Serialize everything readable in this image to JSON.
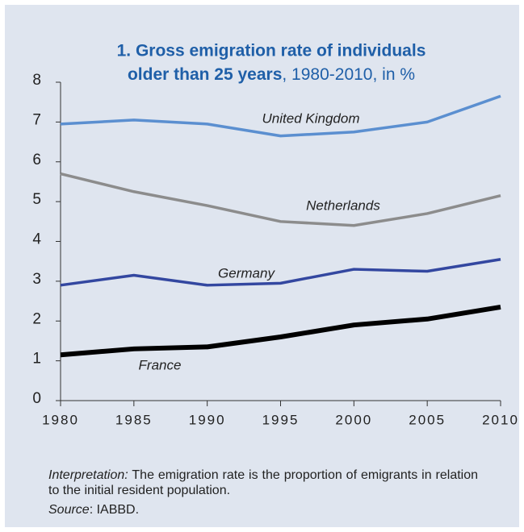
{
  "chart_data": {
    "type": "line",
    "title_lines": [
      "1. Gross emigration rate of individuals",
      "older than 25 years"
    ],
    "subtitle": ", 1980-2010, in %",
    "x": [
      1980,
      1985,
      1990,
      1995,
      2000,
      2005,
      2010
    ],
    "xlim": [
      1980,
      2010
    ],
    "xticks": [
      1980,
      1985,
      1990,
      1995,
      2000,
      2005,
      2010
    ],
    "ylim": [
      0,
      8
    ],
    "yticks": [
      0,
      1,
      2,
      3,
      4,
      5,
      6,
      7,
      8
    ],
    "series": [
      {
        "name": "United Kingdom",
        "color": "#5b8fd0",
        "values": [
          6.95,
          7.05,
          6.95,
          6.65,
          6.75,
          7.0,
          7.65
        ]
      },
      {
        "name": "Netherlands",
        "color": "#8c8c8c",
        "values": [
          5.7,
          5.25,
          4.9,
          4.5,
          4.4,
          4.7,
          5.15
        ]
      },
      {
        "name": "Germany",
        "color": "#3347a0",
        "values": [
          2.9,
          3.15,
          2.9,
          2.95,
          3.3,
          3.25,
          3.55
        ]
      },
      {
        "name": "France",
        "color": "#000000",
        "values": [
          1.15,
          1.3,
          1.35,
          1.6,
          1.9,
          2.05,
          2.35
        ]
      }
    ]
  },
  "notes": {
    "interpretation_label": "Interpretation:",
    "interpretation": "The emigration rate is the proportion of emigrants in relation to the initial resident population.",
    "source_label": "Source",
    "source": ": IABBD."
  }
}
